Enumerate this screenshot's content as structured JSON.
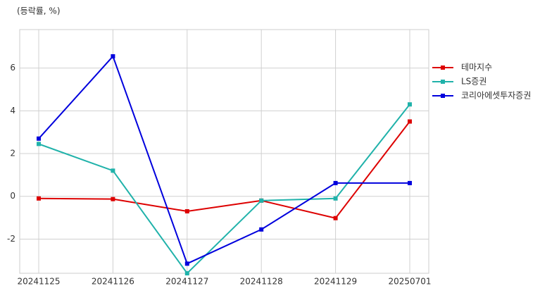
{
  "chart_data": {
    "type": "line",
    "y_label": "(등락률, %)",
    "categories": [
      "20241125",
      "20241126",
      "20241127",
      "20241128",
      "20241129",
      "20250701"
    ],
    "series": [
      {
        "name": "테마지수",
        "color": "#dd0000",
        "values": [
          -0.1,
          -0.13,
          -0.7,
          -0.2,
          -1.02,
          3.5
        ]
      },
      {
        "name": "LS증권",
        "color": "#20b2aa",
        "values": [
          2.45,
          1.2,
          -3.6,
          -0.2,
          -0.1,
          4.3
        ]
      },
      {
        "name": "코리아에셋투자증권",
        "color": "#0000dd",
        "values": [
          2.7,
          6.55,
          -3.15,
          -1.55,
          0.62,
          0.62
        ]
      }
    ],
    "ylim": [
      -3.6,
      7.8
    ],
    "yticks": [
      -2,
      0,
      2,
      4,
      6
    ],
    "grid": true,
    "legend": "right"
  }
}
